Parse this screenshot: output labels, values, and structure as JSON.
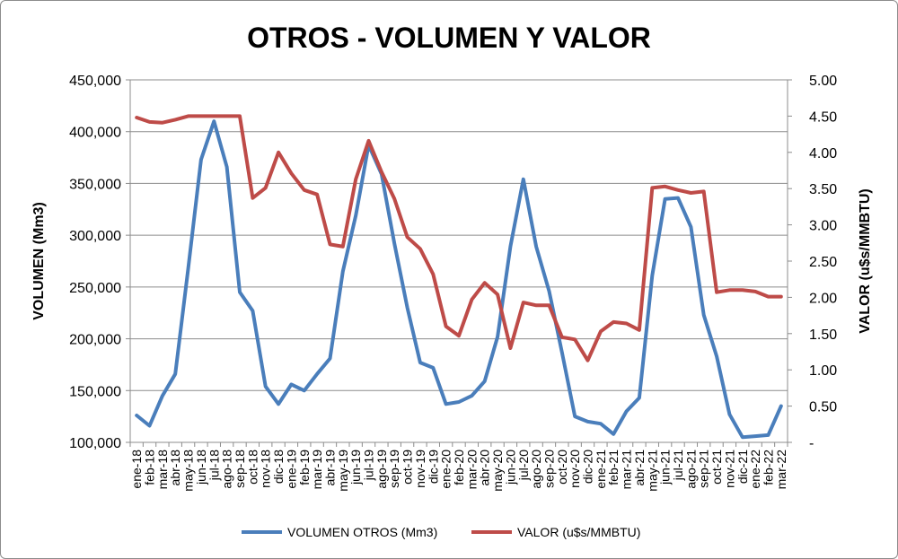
{
  "chart_data": {
    "type": "line",
    "title": "OTROS - VOLUMEN Y VALOR",
    "ylabel_left": "VOLUMEN (Mm3)",
    "ylabel_right": "VALOR (u$s/MMBTU)",
    "ylim_left": [
      100000,
      450000
    ],
    "ylim_right": [
      0,
      5
    ],
    "yticks_left": [
      "100,000",
      "150,000",
      "200,000",
      "250,000",
      "300,000",
      "350,000",
      "400,000",
      "450,000"
    ],
    "yticks_right": [
      "-",
      "0.50",
      "1.00",
      "1.50",
      "2.00",
      "2.50",
      "3.00",
      "3.50",
      "4.00",
      "4.50",
      "5.00"
    ],
    "grid": true,
    "legend_position": "bottom",
    "categories": [
      "ene-18",
      "feb-18",
      "mar-18",
      "abr-18",
      "may-18",
      "jun-18",
      "jul-18",
      "ago-18",
      "sep-18",
      "oct-18",
      "nov-18",
      "dic-18",
      "ene-19",
      "feb-19",
      "mar-19",
      "abr-19",
      "may-19",
      "jun-19",
      "jul-19",
      "ago-19",
      "sep-19",
      "oct-19",
      "nov-19",
      "dic-19",
      "ene-20",
      "feb-20",
      "mar-20",
      "abr-20",
      "may-20",
      "jun-20",
      "jul-20",
      "ago-20",
      "sep-20",
      "oct-20",
      "nov-20",
      "dic-20",
      "ene-21",
      "feb-21",
      "mar-21",
      "abr-21",
      "may-21",
      "jun-21",
      "jul-21",
      "ago-21",
      "sep-21",
      "oct-21",
      "nov-21",
      "dic-21",
      "ene-22",
      "feb-22",
      "mar-22"
    ],
    "series": [
      {
        "name": "VOLUMEN OTROS (Mm3)",
        "axis": "left",
        "color": "#4a7ebb",
        "values": [
          126000,
          116000,
          145000,
          166000,
          268000,
          373000,
          410000,
          366000,
          245000,
          227000,
          154000,
          137000,
          156000,
          150000,
          166000,
          181000,
          265000,
          319000,
          387000,
          359000,
          292000,
          230000,
          177000,
          172000,
          137000,
          139000,
          145000,
          159000,
          202000,
          289000,
          354000,
          289000,
          246000,
          187000,
          125000,
          120000,
          118000,
          108000,
          130000,
          143000,
          261000,
          335000,
          336000,
          308000,
          223000,
          183000,
          127000,
          105000,
          106000,
          107000,
          135000
        ]
      },
      {
        "name": "VALOR (u$s/MMBTU)",
        "axis": "right",
        "color": "#be4b48",
        "values": [
          4.48,
          4.42,
          4.41,
          4.45,
          4.5,
          4.5,
          4.5,
          4.5,
          4.5,
          3.37,
          3.51,
          4.0,
          3.71,
          3.48,
          3.42,
          2.73,
          2.7,
          3.63,
          4.16,
          3.73,
          3.36,
          2.83,
          2.67,
          2.32,
          1.6,
          1.47,
          1.97,
          2.2,
          2.04,
          1.3,
          1.93,
          1.89,
          1.89,
          1.45,
          1.42,
          1.13,
          1.53,
          1.66,
          1.64,
          1.55,
          3.51,
          3.53,
          3.48,
          3.44,
          3.46,
          2.07,
          2.1,
          2.1,
          2.08,
          2.01,
          2.01
        ]
      }
    ]
  }
}
